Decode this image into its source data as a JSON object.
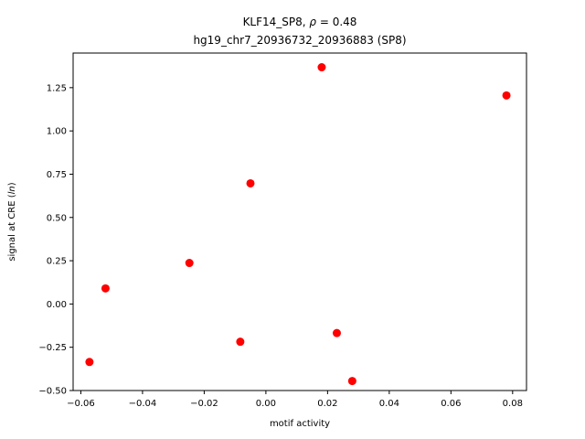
{
  "chart_data": {
    "type": "scatter",
    "title_line1_prefix": "KLF14_SP8, ",
    "title_rho_symbol": "ρ",
    "title_rho_value": " = 0.48",
    "title_line2": "hg19_chr7_20936732_20936883 (SP8)",
    "xlabel": "motif activity",
    "ylabel_prefix": "signal at CRE (",
    "ylabel_italic": "ln",
    "ylabel_suffix": ")",
    "xlim": [
      -0.0625,
      0.0845
    ],
    "ylim": [
      -0.5,
      1.45
    ],
    "xticks": [
      -0.06,
      -0.04,
      -0.02,
      0.0,
      0.02,
      0.04,
      0.06,
      0.08
    ],
    "xtick_labels": [
      "−0.06",
      "−0.04",
      "−0.02",
      "0.00",
      "0.02",
      "0.04",
      "0.06",
      "0.08"
    ],
    "yticks": [
      -0.5,
      -0.25,
      0.0,
      0.25,
      0.5,
      0.75,
      1.0,
      1.25
    ],
    "ytick_labels": [
      "−0.50",
      "−0.25",
      "0.00",
      "0.25",
      "0.50",
      "0.75",
      "1.00",
      "1.25"
    ],
    "marker_color": "#ff0000",
    "grid": false,
    "points": [
      {
        "x": -0.0572,
        "y": -0.335
      },
      {
        "x": -0.052,
        "y": 0.09
      },
      {
        "x": -0.0248,
        "y": 0.237
      },
      {
        "x": -0.0083,
        "y": -0.218
      },
      {
        "x": -0.005,
        "y": 0.697
      },
      {
        "x": 0.0181,
        "y": 1.368
      },
      {
        "x": 0.023,
        "y": -0.168
      },
      {
        "x": 0.028,
        "y": -0.445
      },
      {
        "x": 0.078,
        "y": 1.205
      }
    ]
  }
}
